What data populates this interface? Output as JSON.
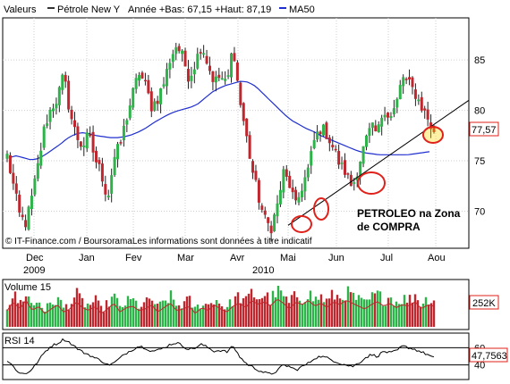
{
  "chart_data": [
    {
      "type": "candlestick",
      "legend": {
        "label": "Valeurs",
        "series_name": "Pétrole New Y",
        "stats": "Année +Bas: 67,15 +Haut: 87,19",
        "ma_name": "MA50"
      },
      "colors": {
        "up": "#2db34a",
        "down": "#c0262d",
        "ma": "#1f2fcf",
        "trend": "#000000",
        "circle": "#e0201a",
        "highlight": "#ffd800"
      },
      "x_labels": [
        "Dec",
        "Jan",
        "Fev",
        "Mar",
        "Avr",
        "Mai",
        "Jun",
        "Jul",
        "Aou"
      ],
      "year_labels": [
        "2009",
        "2010"
      ],
      "y_ticks": [
        70,
        75,
        80,
        85
      ],
      "ylim": [
        66.5,
        89
      ],
      "last_value": "77,57",
      "annotation": [
        "PETROLEO na Zona",
        "de COMPRA"
      ],
      "copyright": "© IT-Finance.com / BoursoramaLes informations sont données à titre indicatif",
      "price_path": [
        75.5,
        72.5,
        69.5,
        68.8,
        71.5,
        74.8,
        78.5,
        80.2,
        81.2,
        83.5,
        79.8,
        77.5,
        76.4,
        77.6,
        75.2,
        73.8,
        71.2,
        75.2,
        76.6,
        79.2,
        81.6,
        83.8,
        82.5,
        80.4,
        81.2,
        82.8,
        85.2,
        86.5,
        85.2,
        83.2,
        84.8,
        86.6,
        84.5,
        82.8,
        83.4,
        82.4,
        86.6,
        81.2,
        77.8,
        74.2,
        71.5,
        69.2,
        68.3,
        70.4,
        73.8,
        72.6,
        70.4,
        72.5,
        74.2,
        77.2,
        78.3,
        77.6,
        76.2,
        74.6,
        73.8,
        72.3,
        74.6,
        76.7,
        78.3,
        77.6,
        80.4,
        79.2,
        80.5,
        83.4,
        82.6,
        81.7,
        80.4,
        79.2,
        77.6
      ],
      "ma50_path": [
        75.3,
        75.5,
        75.3,
        75.1,
        75.2,
        75.6,
        76.1,
        76.6,
        77.2,
        77.6,
        77.8,
        77.7,
        77.5,
        77.4,
        77.3,
        77.3,
        77.4,
        77.6,
        77.9,
        78.3,
        78.8,
        79.2,
        79.6,
        79.9,
        80.1,
        80.3,
        80.6,
        81.2,
        81.8,
        82.2,
        82.5,
        82.7,
        82.9,
        82.8,
        82.4,
        81.7,
        81.0,
        80.3,
        79.6,
        79.0,
        78.6,
        78.2,
        77.9,
        77.5,
        77.2,
        76.9,
        76.6,
        76.3,
        76.0,
        75.8,
        75.7,
        75.6,
        75.6,
        75.6,
        75.6,
        75.6,
        75.7,
        75.8,
        75.9
      ],
      "trend_line": [
        [
          68.6,
          0
        ],
        [
          81.0,
          1
        ]
      ]
    },
    {
      "type": "bar",
      "title": "Volume 15",
      "last_value": "252K",
      "volume_levels": [
        0.55,
        0.85,
        0.6,
        0.9,
        0.55,
        0.7,
        0.45,
        0.6,
        0.75,
        0.5,
        0.6,
        0.85,
        0.65,
        0.55,
        0.7,
        0.45,
        0.6,
        0.8,
        0.5,
        0.65,
        0.7,
        0.55,
        0.6,
        0.75,
        0.5,
        0.65,
        0.8,
        0.55,
        0.6,
        0.7,
        0.45,
        0.65,
        0.55,
        0.75,
        0.6,
        0.5,
        0.7,
        0.8,
        0.65,
        0.9,
        0.75,
        0.85,
        0.7,
        0.95,
        0.8,
        0.6,
        0.85,
        0.75,
        0.9,
        0.7,
        0.8,
        0.65,
        0.85,
        0.75,
        0.9,
        0.8,
        0.7,
        0.6,
        0.75,
        0.85,
        0.7,
        0.8,
        0.65,
        0.75,
        0.7,
        0.85,
        0.6,
        0.75,
        0.7
      ]
    },
    {
      "type": "line",
      "title": "RSI 14",
      "last_value": "47,7563",
      "y_ticks": [
        40,
        60
      ],
      "ylim": [
        25,
        75
      ],
      "rsi_path": [
        45,
        38,
        30,
        30,
        35,
        45,
        55,
        62,
        65,
        70,
        66,
        60,
        55,
        52,
        48,
        45,
        40,
        42,
        48,
        54,
        58,
        62,
        60,
        56,
        57,
        60,
        64,
        66,
        62,
        58,
        60,
        64,
        60,
        56,
        57,
        55,
        62,
        50,
        42,
        38,
        34,
        31,
        29,
        33,
        40,
        38,
        34,
        38,
        42,
        48,
        50,
        48,
        45,
        42,
        40,
        38,
        42,
        48,
        52,
        50,
        56,
        54,
        56,
        62,
        60,
        58,
        55,
        52,
        48
      ]
    }
  ]
}
